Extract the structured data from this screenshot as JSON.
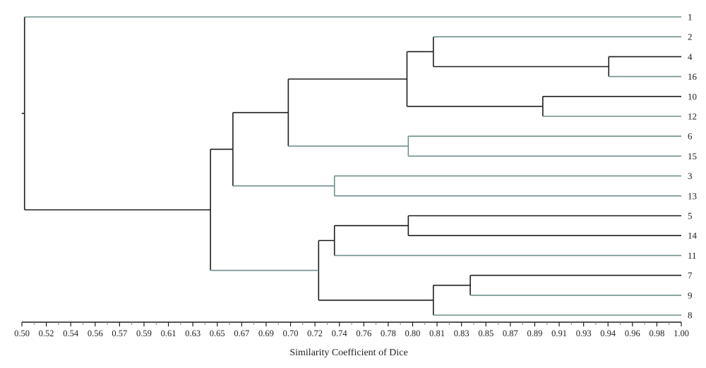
{
  "chart_data": {
    "type": "dendrogram",
    "xlabel": "Similarity Coefficient of Dice",
    "xlim": [
      0.5,
      1.0
    ],
    "tick_labels": [
      "0.50",
      "0.52",
      "0.54",
      "0.56",
      "0.57",
      "0.59",
      "0.61",
      "0.63",
      "0.65",
      "0.67",
      "0.69",
      "0.70",
      "0.72",
      "0.74",
      "0.76",
      "0.78",
      "0.80",
      "0.81",
      "0.83",
      "0.85",
      "0.87",
      "0.89",
      "0.91",
      "0.93",
      "0.94",
      "0.96",
      "0.98",
      "1.00"
    ],
    "leaves": [
      "1",
      "2",
      "4",
      "16",
      "10",
      "12",
      "6",
      "15",
      "3",
      "13",
      "5",
      "14",
      "11",
      "7",
      "9",
      "8"
    ],
    "merges": [
      {
        "id": "a",
        "children": [
          "4",
          "16"
        ],
        "similarity": 0.945
      },
      {
        "id": "b",
        "children": [
          "10",
          "12"
        ],
        "similarity": 0.895
      },
      {
        "id": "c",
        "children": [
          "7",
          "9"
        ],
        "similarity": 0.84
      },
      {
        "id": "d",
        "children": [
          "2",
          "a"
        ],
        "similarity": 0.812
      },
      {
        "id": "e",
        "children": [
          "5",
          "14"
        ],
        "similarity": 0.793
      },
      {
        "id": "f",
        "children": [
          "6",
          "15"
        ],
        "similarity": 0.793
      },
      {
        "id": "g",
        "children": [
          "d",
          "b"
        ],
        "similarity": 0.792
      },
      {
        "id": "h",
        "children": [
          "c",
          "8"
        ],
        "similarity": 0.812
      },
      {
        "id": "i",
        "children": [
          "3",
          "13"
        ],
        "similarity": 0.737
      },
      {
        "id": "j",
        "children": [
          "e",
          "11"
        ],
        "similarity": 0.737
      },
      {
        "id": "k",
        "children": [
          "g",
          "f"
        ],
        "similarity": 0.702
      },
      {
        "id": "l",
        "children": [
          "j",
          "h"
        ],
        "similarity": 0.725
      },
      {
        "id": "m",
        "children": [
          "k",
          "i"
        ],
        "similarity": 0.66
      },
      {
        "id": "n",
        "children": [
          "m",
          "l"
        ],
        "similarity": 0.643
      },
      {
        "id": "o",
        "children": [
          "1",
          "n"
        ],
        "similarity": 0.502
      }
    ],
    "colors": {
      "dark": "#1e1e1e",
      "teal": "#6f8f8c"
    }
  }
}
